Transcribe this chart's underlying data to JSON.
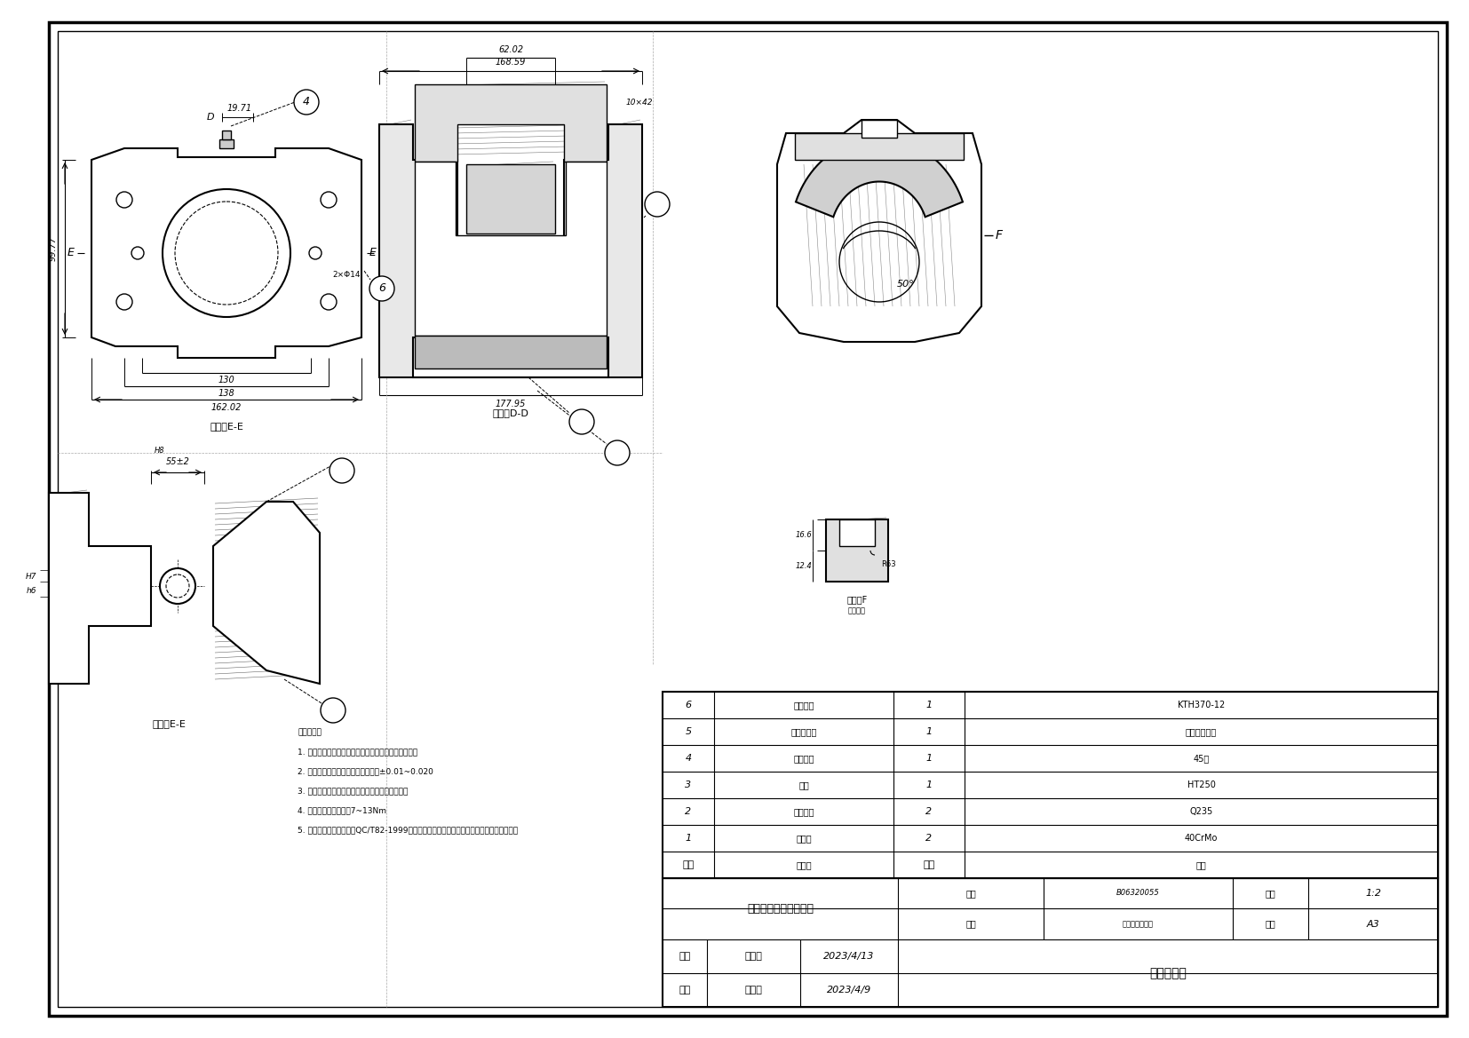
{
  "bg_color": "#ffffff",
  "title_area": {
    "drawing_title": "盘式制动器制动钳总成",
    "grade": "汽车制工程二班",
    "drawing_number_val": "A3",
    "student_id_val": "B06320055",
    "scale_val": "1:2",
    "drawer_label": "制图",
    "drawer_name": "陈志宏",
    "drawer_date": "2023/4/9",
    "checker_label": "审核",
    "checker_name": "李小庆",
    "checker_date": "2023/4/13",
    "company": "武汉商学院"
  },
  "bom_rows": [
    {
      "seq": "6",
      "name": "制动钳体",
      "qty": "1",
      "material": "KTH370-12"
    },
    {
      "seq": "5",
      "name": "活塞密封圈",
      "qty": "1",
      "material": "三元乙丙橡胶"
    },
    {
      "seq": "4",
      "name": "放气螺钉",
      "qty": "1",
      "material": "45钢"
    },
    {
      "seq": "3",
      "name": "活塞",
      "qty": "1",
      "material": "HT250"
    },
    {
      "seq": "2",
      "name": "六角螺栓",
      "qty": "2",
      "material": "Q235"
    },
    {
      "seq": "1",
      "name": "导向销",
      "qty": "2",
      "material": "40CrMo"
    },
    {
      "seq": "序号",
      "name": "零件名",
      "qty": "数量",
      "material": "材料"
    }
  ],
  "tech_notes": [
    "技术要求：",
    "1. 装配时在下列铸位添足量润滑脂（不得污染制动块）",
    "2. 以上零件尺寸标注均存在尺寸公差±0.01~0.020",
    "3. 活塞密封圈及放孔内不得有伤痕及异物引起泄露",
    "4. 放气螺钉扭紧力矩为7~13Nm",
    "5. 制动钳总成性能应符合QC/T82-1999《轿车制动钳总成性能要求及台架试验方法》的规定"
  ]
}
